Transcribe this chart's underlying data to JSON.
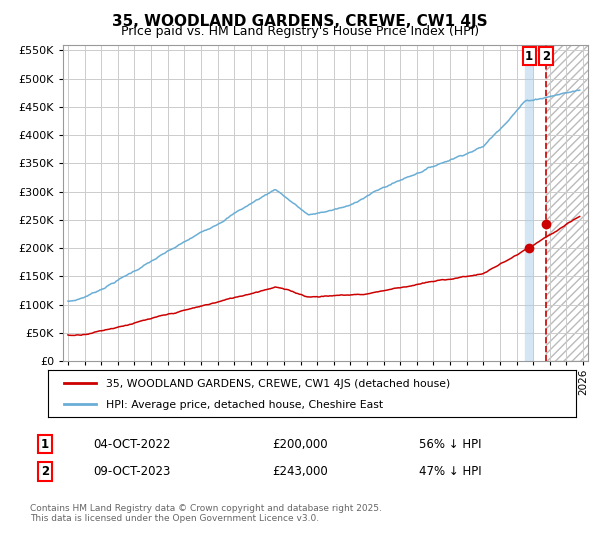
{
  "title": "35, WOODLAND GARDENS, CREWE, CW1 4JS",
  "subtitle": "Price paid vs. HM Land Registry's House Price Index (HPI)",
  "ylim": [
    0,
    560000
  ],
  "yticks": [
    0,
    50000,
    100000,
    150000,
    200000,
    250000,
    300000,
    350000,
    400000,
    450000,
    500000,
    550000
  ],
  "xlim_start": 1995,
  "xlim_end": 2026,
  "hpi_color": "#6aaed6",
  "price_color": "#cc0000",
  "vline1_color": "#aacce8",
  "vline2_color": "#cc0000",
  "vline1_x": 2022.76,
  "vline2_x": 2023.77,
  "sale1_x": 2022.76,
  "sale1_y": 200000,
  "sale2_x": 2023.77,
  "sale2_y": 243000,
  "legend_label1": "35, WOODLAND GARDENS, CREWE, CW1 4JS (detached house)",
  "legend_label2": "HPI: Average price, detached house, Cheshire East",
  "annotation1_num": "1",
  "annotation2_num": "2",
  "ann1_date": "04-OCT-2022",
  "ann1_price": "£200,000",
  "ann1_hpi": "56% ↓ HPI",
  "ann2_date": "09-OCT-2023",
  "ann2_price": "£243,000",
  "ann2_hpi": "47% ↓ HPI",
  "footer": "Contains HM Land Registry data © Crown copyright and database right 2025.\nThis data is licensed under the Open Government Licence v3.0.",
  "background_color": "#ffffff",
  "grid_color": "#cccccc"
}
